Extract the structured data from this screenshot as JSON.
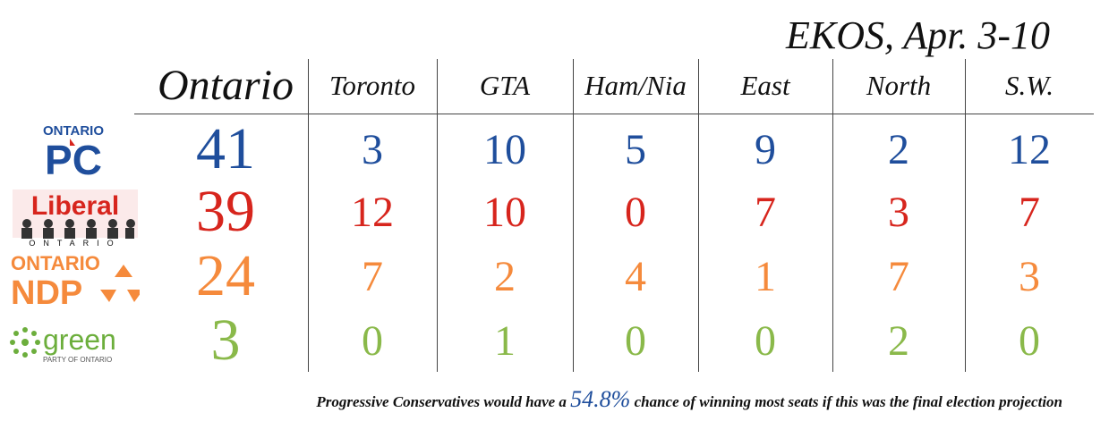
{
  "title": "EKOS, Apr. 3-10",
  "chart_data": {
    "type": "table",
    "columns": [
      "Ontario",
      "Toronto",
      "GTA",
      "Ham/Nia",
      "East",
      "North",
      "S.W."
    ],
    "rows": [
      {
        "party": "PC",
        "logo_text": "ONTARIO PC",
        "color": "#1f4e9c",
        "values": [
          41,
          3,
          10,
          5,
          9,
          2,
          12
        ]
      },
      {
        "party": "Liberal",
        "logo_text": "Liberal ONTARIO",
        "color": "#d7251d",
        "values": [
          39,
          12,
          10,
          0,
          7,
          3,
          7
        ]
      },
      {
        "party": "NDP",
        "logo_text": "ONTARIO NDP",
        "color": "#f58a3c",
        "values": [
          24,
          7,
          2,
          4,
          1,
          7,
          3
        ]
      },
      {
        "party": "Green",
        "logo_text": "green PARTY OF ONTARIO",
        "color": "#8ab94a",
        "values": [
          3,
          0,
          1,
          0,
          0,
          2,
          0
        ]
      }
    ]
  },
  "footer": {
    "before": "Progressive Conservatives would have a ",
    "pct": "54.8%",
    "after": " chance of winning most seats if this was the final election projection",
    "pct_color": "#1f4e9c"
  },
  "logos": {
    "pc": {
      "line1": "ONTARIO",
      "line2": "PC"
    },
    "liberal": {
      "line1": "Liberal",
      "line2": "ONTARIO"
    },
    "ndp": {
      "line1": "ONTARIO",
      "line2": "NDP"
    },
    "green": {
      "line1": "green",
      "line2": "PARTY OF ONTARIO"
    }
  }
}
